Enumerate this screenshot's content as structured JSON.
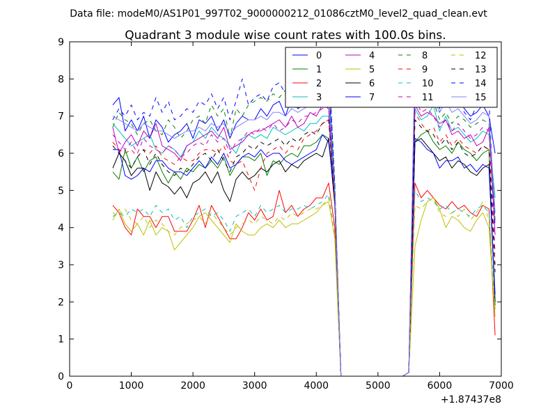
{
  "chart_data": {
    "type": "line",
    "suptitle": "Data file: modeM0/AS1P01_997T02_9000000212_01086cztM0_level2_quad_clean.evt",
    "title": "Quadrant 3 module wise count rates with 100.0s bins.",
    "xlabel": "",
    "ylabel": "",
    "x_offset_label": "+1.87437e8",
    "xlim": [
      0,
      7000
    ],
    "ylim": [
      0,
      9
    ],
    "xticks": [
      0,
      1000,
      2000,
      3000,
      4000,
      5000,
      6000,
      7000
    ],
    "yticks": [
      0,
      1,
      2,
      3,
      4,
      5,
      6,
      7,
      8,
      9
    ],
    "xtick_labels": [
      "0",
      "1000",
      "2000",
      "3000",
      "4000",
      "5000",
      "6000",
      "7000"
    ],
    "ytick_labels": [
      "0",
      "1",
      "2",
      "3",
      "4",
      "5",
      "6",
      "7",
      "8",
      "9"
    ],
    "grid": false,
    "legend_position": "top-right",
    "legend_columns": 4,
    "x": [
      700,
      800,
      900,
      1000,
      1100,
      1200,
      1300,
      1400,
      1500,
      1600,
      1700,
      1800,
      1900,
      2000,
      2100,
      2200,
      2300,
      2400,
      2500,
      2600,
      2700,
      2800,
      2900,
      3000,
      3100,
      3200,
      3300,
      3400,
      3500,
      3600,
      3700,
      3800,
      3900,
      4000,
      4100,
      4200,
      4300,
      4350,
      4400,
      4500,
      4600,
      4700,
      4800,
      4900,
      5000,
      5100,
      5200,
      5300,
      5400,
      5500,
      5600,
      5700,
      5800,
      5900,
      6000,
      6100,
      6200,
      6300,
      6400,
      6500,
      6600,
      6700,
      6800,
      6900
    ],
    "series": [
      {
        "name": "0",
        "color": "#0000ff",
        "dash": "solid",
        "values": [
          7.3,
          7.5,
          6.6,
          6.9,
          6.6,
          7.0,
          6.4,
          6.9,
          6.7,
          6.3,
          6.5,
          6.6,
          6.8,
          6.4,
          6.9,
          6.8,
          7.0,
          6.6,
          6.9,
          6.4,
          6.8,
          7.0,
          6.9,
          6.9,
          7.2,
          7.0,
          7.3,
          7.4,
          7.0,
          7.5,
          7.2,
          7.3,
          7.5,
          7.6,
          7.4,
          7.9,
          4.9,
          2.5,
          0,
          0,
          0,
          0,
          0,
          0,
          0,
          0,
          0,
          0,
          0,
          0.1,
          8.5,
          7.7,
          7.6,
          7.9,
          7.2,
          7.8,
          7.4,
          7.5,
          7.2,
          7.0,
          7.1,
          7.3,
          7.0,
          6.0
        ]
      },
      {
        "name": "1",
        "color": "#008000",
        "dash": "solid",
        "values": [
          5.5,
          5.3,
          6.1,
          5.6,
          5.9,
          5.5,
          5.8,
          5.9,
          5.5,
          5.2,
          5.5,
          5.3,
          5.6,
          5.5,
          5.7,
          5.6,
          5.8,
          5.6,
          5.9,
          5.4,
          5.7,
          5.9,
          5.9,
          5.8,
          6.0,
          5.4,
          5.8,
          5.7,
          5.9,
          6.0,
          5.9,
          6.2,
          6.2,
          6.3,
          6.5,
          6.4,
          4.9,
          2.4,
          0,
          0,
          0,
          0,
          0,
          0,
          0,
          0,
          0,
          0,
          0,
          0.1,
          6.3,
          6.5,
          6.6,
          6.3,
          6.1,
          6.2,
          6.0,
          6.3,
          6.1,
          6.0,
          5.8,
          6.0,
          6.1,
          1.9
        ]
      },
      {
        "name": "2",
        "color": "#ff0000",
        "dash": "solid",
        "values": [
          4.6,
          4.4,
          4.0,
          3.8,
          4.5,
          4.3,
          4.3,
          4.0,
          4.3,
          4.3,
          3.9,
          3.9,
          3.9,
          4.2,
          4.6,
          4.0,
          4.6,
          4.3,
          4.0,
          3.7,
          3.7,
          4.0,
          4.4,
          4.2,
          4.5,
          4.2,
          4.3,
          5.0,
          4.4,
          4.6,
          4.3,
          4.5,
          4.6,
          4.8,
          4.8,
          5.2,
          4.0,
          1.9,
          0,
          0,
          0,
          0,
          0,
          0,
          0,
          0,
          0,
          0,
          0,
          0.1,
          5.2,
          4.8,
          5.0,
          4.8,
          4.6,
          4.5,
          4.7,
          4.5,
          4.6,
          4.4,
          4.3,
          4.6,
          4.5,
          1.1
        ]
      },
      {
        "name": "3",
        "color": "#00bfbf",
        "dash": "solid",
        "values": [
          6.8,
          6.6,
          6.4,
          6.2,
          6.3,
          6.4,
          6.5,
          6.1,
          6.0,
          6.2,
          6.1,
          5.9,
          6.2,
          6.3,
          6.6,
          6.4,
          6.7,
          6.5,
          6.4,
          6.2,
          6.0,
          6.4,
          6.5,
          6.4,
          6.5,
          6.4,
          6.7,
          6.6,
          6.5,
          6.6,
          6.7,
          6.6,
          6.8,
          6.8,
          7.0,
          7.0,
          4.7,
          2.3,
          0,
          0,
          0,
          0,
          0,
          0,
          0,
          0,
          0,
          0,
          0,
          0.1,
          7.2,
          6.9,
          7.0,
          7.3,
          6.6,
          7.0,
          6.6,
          6.7,
          6.5,
          6.3,
          6.4,
          6.6,
          6.5,
          4.8
        ]
      },
      {
        "name": "4",
        "color": "#bf00bf",
        "dash": "solid",
        "values": [
          6.7,
          6.0,
          6.3,
          6.5,
          6.2,
          6.6,
          6.4,
          6.8,
          6.2,
          6.1,
          6.0,
          5.8,
          6.2,
          6.3,
          6.4,
          6.5,
          6.6,
          6.4,
          6.7,
          6.1,
          6.2,
          6.3,
          6.5,
          6.6,
          6.6,
          6.7,
          6.8,
          6.9,
          6.7,
          7.0,
          6.7,
          6.8,
          7.1,
          7.0,
          7.3,
          7.2,
          4.8,
          2.4,
          0,
          0,
          0,
          0,
          0,
          0,
          0,
          0,
          0,
          0,
          0,
          0.1,
          7.3,
          7.0,
          7.1,
          7.0,
          6.8,
          6.9,
          6.5,
          6.6,
          6.4,
          6.5,
          6.2,
          6.3,
          6.7,
          3.8
        ]
      },
      {
        "name": "5",
        "color": "#bfbf00",
        "dash": "solid",
        "values": [
          4.2,
          4.5,
          4.1,
          3.9,
          4.1,
          3.8,
          4.2,
          3.8,
          4.0,
          3.9,
          3.4,
          3.6,
          3.8,
          4.0,
          4.3,
          4.4,
          4.2,
          4.0,
          3.8,
          3.6,
          4.1,
          3.9,
          3.8,
          3.8,
          4.0,
          4.1,
          4.0,
          4.2,
          4.0,
          4.1,
          4.1,
          4.2,
          4.3,
          4.4,
          4.6,
          4.7,
          3.7,
          1.8,
          0,
          0,
          0,
          0,
          0,
          0,
          0,
          0,
          0,
          0,
          0,
          0.1,
          3.5,
          4.2,
          4.7,
          4.8,
          4.5,
          4.0,
          4.3,
          4.2,
          4.0,
          3.9,
          4.2,
          4.4,
          4.0,
          1.6
        ]
      },
      {
        "name": "6",
        "color": "#000000",
        "dash": "solid",
        "values": [
          5.6,
          6.0,
          5.8,
          5.4,
          5.6,
          5.6,
          5.0,
          5.5,
          5.2,
          5.1,
          4.9,
          5.1,
          4.8,
          5.2,
          5.3,
          5.5,
          5.2,
          5.5,
          5.0,
          4.7,
          5.3,
          5.5,
          5.3,
          5.4,
          5.6,
          5.5,
          5.7,
          5.8,
          5.5,
          5.7,
          5.6,
          5.8,
          5.9,
          6.0,
          5.9,
          6.4,
          4.6,
          2.3,
          0,
          0,
          0,
          0,
          0,
          0,
          0,
          0,
          0,
          0,
          0,
          0.1,
          6.3,
          6.4,
          6.2,
          6.0,
          5.8,
          5.9,
          5.6,
          5.8,
          5.7,
          5.5,
          5.4,
          5.6,
          5.7,
          2.0
        ]
      },
      {
        "name": "7",
        "color": "#0000ff",
        "dash": "solid",
        "values": [
          6.1,
          6.1,
          5.4,
          5.3,
          5.4,
          5.6,
          5.5,
          5.8,
          5.8,
          5.6,
          5.5,
          5.5,
          5.4,
          5.6,
          5.8,
          5.6,
          5.9,
          5.7,
          6.0,
          5.6,
          5.7,
          5.9,
          6.0,
          5.9,
          6.1,
          5.9,
          6.0,
          6.0,
          5.8,
          5.7,
          5.8,
          5.9,
          6.0,
          6.1,
          6.5,
          6.3,
          4.8,
          2.3,
          0,
          0,
          0,
          0,
          0,
          0,
          0,
          0,
          0,
          0,
          0,
          0.1,
          6.4,
          6.3,
          6.1,
          6.0,
          5.6,
          5.8,
          5.8,
          5.9,
          5.6,
          5.7,
          5.5,
          5.7,
          5.6,
          2.2
        ]
      },
      {
        "name": "8",
        "color": "#008000",
        "dash": "dashed",
        "values": [
          6.7,
          7.1,
          6.9,
          6.8,
          6.5,
          6.8,
          6.9,
          6.6,
          6.5,
          6.9,
          6.7,
          6.4,
          6.6,
          6.9,
          7.0,
          6.8,
          7.3,
          7.0,
          7.2,
          6.4,
          7.2,
          7.0,
          7.3,
          7.4,
          7.5,
          7.4,
          7.6,
          7.5,
          7.7,
          7.9,
          7.8,
          7.6,
          7.9,
          8.0,
          8.2,
          8.6,
          5.2,
          2.5,
          0,
          0,
          0,
          0,
          0,
          0,
          0,
          0,
          0,
          0,
          0,
          0.1,
          7.8,
          7.5,
          7.3,
          7.4,
          6.9,
          7.1,
          6.8,
          7.0,
          6.9,
          6.7,
          6.8,
          6.9,
          6.8,
          4.2
        ]
      },
      {
        "name": "9",
        "color": "#ff0000",
        "dash": "dashed",
        "values": [
          6.3,
          6.1,
          6.0,
          6.1,
          5.9,
          6.1,
          6.0,
          6.2,
          5.9,
          5.8,
          5.7,
          5.9,
          5.8,
          5.8,
          6.0,
          6.1,
          6.1,
          6.0,
          6.2,
          5.8,
          5.7,
          5.8,
          5.4,
          5.0,
          5.6,
          6.0,
          6.1,
          6.2,
          6.0,
          6.2,
          6.1,
          6.4,
          6.5,
          6.6,
          6.8,
          6.9,
          4.7,
          2.3,
          0,
          0,
          0,
          0,
          0,
          0,
          0,
          0,
          0,
          0,
          0,
          0.1,
          7.1,
          6.8,
          6.6,
          6.7,
          6.3,
          6.5,
          6.2,
          6.4,
          6.2,
          6.1,
          6.0,
          6.2,
          6.1,
          3.0
        ]
      },
      {
        "name": "10",
        "color": "#00bfbf",
        "dash": "dashed",
        "values": [
          4.3,
          4.4,
          4.3,
          4.5,
          4.4,
          4.5,
          4.3,
          4.6,
          4.4,
          4.5,
          4.2,
          4.3,
          4.0,
          4.3,
          4.4,
          4.5,
          4.3,
          4.4,
          4.2,
          3.9,
          4.3,
          4.4,
          4.5,
          4.3,
          4.6,
          4.4,
          4.5,
          4.6,
          4.4,
          4.5,
          4.5,
          4.6,
          4.5,
          4.6,
          4.7,
          4.9,
          3.8,
          1.9,
          0,
          0,
          0,
          0,
          0,
          0,
          0,
          0,
          0,
          0,
          0,
          0.1,
          5.0,
          4.7,
          4.8,
          4.7,
          4.5,
          4.6,
          4.4,
          4.5,
          4.4,
          4.3,
          4.5,
          4.6,
          4.4,
          1.8
        ]
      },
      {
        "name": "11",
        "color": "#bf00bf",
        "dash": "dashed",
        "values": [
          6.5,
          6.3,
          6.1,
          6.3,
          6.0,
          6.4,
          6.2,
          6.1,
          6.0,
          6.2,
          6.1,
          5.9,
          6.0,
          6.2,
          6.3,
          6.2,
          6.5,
          6.3,
          6.4,
          6.0,
          6.3,
          6.4,
          6.6,
          6.5,
          6.7,
          6.6,
          6.8,
          6.6,
          6.7,
          6.9,
          6.8,
          7.0,
          7.0,
          7.1,
          7.2,
          7.3,
          4.9,
          2.4,
          0,
          0,
          0,
          0,
          0,
          0,
          0,
          0,
          0,
          0,
          0,
          0.1,
          7.5,
          7.1,
          7.2,
          7.0,
          6.7,
          6.9,
          6.6,
          6.8,
          6.6,
          6.4,
          6.5,
          6.7,
          6.6,
          3.3
        ]
      },
      {
        "name": "12",
        "color": "#bfbf00",
        "dash": "dashed",
        "values": [
          4.4,
          4.3,
          4.5,
          4.2,
          4.1,
          4.3,
          4.0,
          4.2,
          4.1,
          3.9,
          3.8,
          4.0,
          4.1,
          4.2,
          4.3,
          4.1,
          4.4,
          4.2,
          4.0,
          3.8,
          4.0,
          4.1,
          4.2,
          4.1,
          4.3,
          4.2,
          4.1,
          4.3,
          4.2,
          4.4,
          4.3,
          4.4,
          4.5,
          4.5,
          4.6,
          4.8,
          3.8,
          1.9,
          0,
          0,
          0,
          0,
          0,
          0,
          0,
          0,
          0,
          0,
          0,
          0.1,
          4.6,
          4.5,
          4.7,
          4.8,
          4.4,
          4.3,
          4.4,
          4.3,
          4.5,
          4.2,
          4.4,
          4.7,
          4.2,
          1.7
        ]
      },
      {
        "name": "13",
        "color": "#000000",
        "dash": "dashed",
        "values": [
          6.2,
          6.0,
          5.8,
          5.6,
          5.9,
          6.1,
          5.7,
          6.0,
          5.7,
          5.5,
          5.4,
          5.6,
          5.5,
          5.7,
          5.9,
          6.0,
          5.8,
          6.1,
          5.8,
          5.5,
          5.9,
          6.0,
          6.2,
          6.1,
          6.3,
          6.2,
          6.3,
          6.4,
          6.2,
          6.4,
          6.3,
          6.5,
          6.6,
          6.5,
          6.8,
          6.9,
          4.8,
          2.4,
          0,
          0,
          0,
          0,
          0,
          0,
          0,
          0,
          0,
          0,
          0,
          0.1,
          6.9,
          6.7,
          6.6,
          6.5,
          6.2,
          6.4,
          6.1,
          6.3,
          6.0,
          5.9,
          6.0,
          6.2,
          6.1,
          2.8
        ]
      },
      {
        "name": "14",
        "color": "#0000ff",
        "dash": "dashed",
        "values": [
          6.9,
          7.2,
          7.0,
          7.3,
          6.9,
          7.1,
          7.0,
          7.5,
          7.1,
          7.4,
          6.9,
          7.0,
          7.2,
          7.1,
          7.4,
          7.3,
          7.6,
          7.2,
          7.5,
          6.9,
          7.4,
          8.0,
          7.3,
          7.5,
          7.6,
          7.4,
          7.8,
          7.9,
          7.6,
          7.8,
          7.7,
          8.1,
          8.0,
          8.1,
          8.3,
          8.5,
          5.1,
          2.5,
          0,
          0,
          0,
          0,
          0,
          0,
          0,
          0,
          0,
          0,
          0,
          0.1,
          7.9,
          7.5,
          7.6,
          7.4,
          7.1,
          7.6,
          7.3,
          7.5,
          7.1,
          6.9,
          7.3,
          7.6,
          7.4,
          4.0
        ]
      },
      {
        "name": "15",
        "color": "#7f7fff",
        "dash": "solid",
        "values": [
          7.0,
          6.9,
          6.8,
          6.7,
          6.6,
          6.8,
          6.7,
          6.6,
          6.6,
          6.5,
          6.4,
          6.5,
          6.6,
          6.6,
          6.7,
          6.6,
          6.8,
          6.7,
          6.8,
          6.5,
          6.7,
          6.8,
          6.9,
          6.9,
          7.0,
          6.9,
          7.1,
          7.1,
          7.0,
          7.2,
          7.1,
          7.2,
          7.3,
          7.4,
          7.5,
          7.6,
          4.9,
          2.4,
          0,
          0,
          0,
          0,
          0,
          0,
          0,
          0,
          0,
          0,
          0,
          0.1,
          8.6,
          7.6,
          7.4,
          7.5,
          7.1,
          7.4,
          7.1,
          7.2,
          7.0,
          6.8,
          6.9,
          7.1,
          7.0,
          4.4
        ]
      }
    ]
  }
}
